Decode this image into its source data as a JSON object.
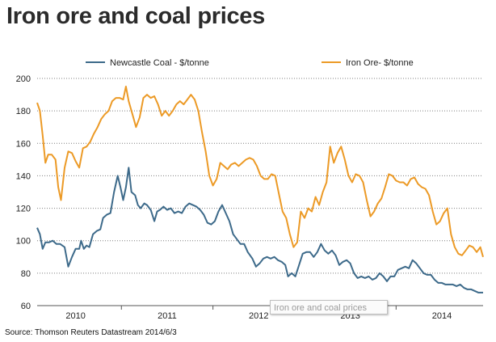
{
  "title": "Iron ore and coal prices",
  "source": "Source: Thomson Reuters Datastream 2014/6/3",
  "tooltip": "Iron ore and coal prices",
  "colors": {
    "coal": "#3d6a8a",
    "iron": "#ec9a26",
    "grid": "#7f7f7f"
  },
  "chart_data": {
    "type": "line",
    "title": "Iron ore and coal prices",
    "xlabel": "",
    "ylabel": "",
    "x_range": [
      2009.58,
      2014.45
    ],
    "ylim": [
      60,
      200
    ],
    "y_ticks": [
      60,
      80,
      100,
      120,
      140,
      160,
      180,
      200
    ],
    "x_tick_labels": [
      {
        "label": "2010",
        "x": 2010.0
      },
      {
        "label": "2011",
        "x": 2011.0
      },
      {
        "label": "2012",
        "x": 2012.0
      },
      {
        "label": "2013",
        "x": 2013.0
      },
      {
        "label": "2014",
        "x": 2014.0
      }
    ],
    "grid": "horizontal-dotted",
    "legend": "top",
    "series": [
      {
        "name": "Newcastle Coal - $/tonne",
        "color": "#3d6a8a",
        "points": [
          [
            2009.58,
            108
          ],
          [
            2009.61,
            104
          ],
          [
            2009.64,
            95
          ],
          [
            2009.67,
            99
          ],
          [
            2009.71,
            99
          ],
          [
            2009.75,
            100
          ],
          [
            2009.79,
            98
          ],
          [
            2009.83,
            98
          ],
          [
            2009.88,
            96
          ],
          [
            2009.92,
            84
          ],
          [
            2009.96,
            90
          ],
          [
            2010.0,
            95
          ],
          [
            2010.04,
            95
          ],
          [
            2010.06,
            100
          ],
          [
            2010.09,
            95
          ],
          [
            2010.12,
            97
          ],
          [
            2010.15,
            96
          ],
          [
            2010.19,
            104
          ],
          [
            2010.23,
            106
          ],
          [
            2010.27,
            107
          ],
          [
            2010.3,
            114
          ],
          [
            2010.34,
            116
          ],
          [
            2010.38,
            117
          ],
          [
            2010.42,
            130
          ],
          [
            2010.46,
            140
          ],
          [
            2010.49,
            133
          ],
          [
            2010.52,
            125
          ],
          [
            2010.55,
            133
          ],
          [
            2010.58,
            145
          ],
          [
            2010.61,
            130
          ],
          [
            2010.65,
            128
          ],
          [
            2010.68,
            122
          ],
          [
            2010.71,
            120
          ],
          [
            2010.75,
            123
          ],
          [
            2010.78,
            122
          ],
          [
            2010.82,
            119
          ],
          [
            2010.86,
            112
          ],
          [
            2010.89,
            118
          ],
          [
            2010.92,
            119
          ],
          [
            2010.96,
            121
          ],
          [
            2011.0,
            119
          ],
          [
            2011.04,
            120
          ],
          [
            2011.08,
            117
          ],
          [
            2011.12,
            118
          ],
          [
            2011.16,
            117
          ],
          [
            2011.2,
            121
          ],
          [
            2011.24,
            123
          ],
          [
            2011.28,
            122
          ],
          [
            2011.32,
            121
          ],
          [
            2011.36,
            119
          ],
          [
            2011.4,
            116
          ],
          [
            2011.44,
            111
          ],
          [
            2011.48,
            110
          ],
          [
            2011.52,
            112
          ],
          [
            2011.56,
            118
          ],
          [
            2011.6,
            122
          ],
          [
            2011.64,
            117
          ],
          [
            2011.68,
            112
          ],
          [
            2011.72,
            104
          ],
          [
            2011.76,
            101
          ],
          [
            2011.8,
            98
          ],
          [
            2011.84,
            98
          ],
          [
            2011.88,
            93
          ],
          [
            2011.93,
            89
          ],
          [
            2011.97,
            84
          ],
          [
            2012.01,
            86
          ],
          [
            2012.05,
            89
          ],
          [
            2012.09,
            90
          ],
          [
            2012.13,
            89
          ],
          [
            2012.17,
            90
          ],
          [
            2012.21,
            88
          ],
          [
            2012.25,
            87
          ],
          [
            2012.29,
            85
          ],
          [
            2012.32,
            78
          ],
          [
            2012.36,
            80
          ],
          [
            2012.4,
            78
          ],
          [
            2012.44,
            85
          ],
          [
            2012.48,
            92
          ],
          [
            2012.52,
            93
          ],
          [
            2012.56,
            93
          ],
          [
            2012.6,
            90
          ],
          [
            2012.64,
            93
          ],
          [
            2012.68,
            98
          ],
          [
            2012.72,
            94
          ],
          [
            2012.76,
            92
          ],
          [
            2012.8,
            94
          ],
          [
            2012.84,
            91
          ],
          [
            2012.88,
            85
          ],
          [
            2012.92,
            87
          ],
          [
            2012.96,
            88
          ],
          [
            2013.0,
            86
          ],
          [
            2013.04,
            80
          ],
          [
            2013.08,
            77
          ],
          [
            2013.12,
            78
          ],
          [
            2013.16,
            77
          ],
          [
            2013.2,
            78
          ],
          [
            2013.24,
            76
          ],
          [
            2013.28,
            77
          ],
          [
            2013.32,
            80
          ],
          [
            2013.36,
            78
          ],
          [
            2013.4,
            75
          ],
          [
            2013.44,
            78
          ],
          [
            2013.48,
            78
          ],
          [
            2013.52,
            82
          ],
          [
            2013.56,
            83
          ],
          [
            2013.6,
            84
          ],
          [
            2013.64,
            83
          ],
          [
            2013.68,
            88
          ],
          [
            2013.72,
            86
          ],
          [
            2013.76,
            83
          ],
          [
            2013.8,
            80
          ],
          [
            2013.84,
            79
          ],
          [
            2013.88,
            79
          ],
          [
            2013.92,
            76
          ],
          [
            2013.96,
            74
          ],
          [
            2014.0,
            74
          ],
          [
            2014.04,
            73
          ],
          [
            2014.08,
            73
          ],
          [
            2014.12,
            73
          ],
          [
            2014.16,
            72
          ],
          [
            2014.2,
            73
          ],
          [
            2014.24,
            71
          ],
          [
            2014.28,
            70
          ],
          [
            2014.32,
            70
          ],
          [
            2014.36,
            69
          ],
          [
            2014.4,
            68
          ],
          [
            2014.45,
            68
          ]
        ]
      },
      {
        "name": "Iron Ore- $/tonne",
        "color": "#ec9a26",
        "points": [
          [
            2009.58,
            185
          ],
          [
            2009.61,
            180
          ],
          [
            2009.64,
            165
          ],
          [
            2009.67,
            148
          ],
          [
            2009.7,
            153
          ],
          [
            2009.74,
            153
          ],
          [
            2009.78,
            150
          ],
          [
            2009.81,
            133
          ],
          [
            2009.84,
            125
          ],
          [
            2009.88,
            145
          ],
          [
            2009.92,
            155
          ],
          [
            2009.96,
            154
          ],
          [
            2010.0,
            149
          ],
          [
            2010.04,
            145
          ],
          [
            2010.08,
            157
          ],
          [
            2010.12,
            158
          ],
          [
            2010.16,
            161
          ],
          [
            2010.2,
            166
          ],
          [
            2010.24,
            170
          ],
          [
            2010.28,
            175
          ],
          [
            2010.32,
            178
          ],
          [
            2010.36,
            180
          ],
          [
            2010.4,
            186
          ],
          [
            2010.44,
            188
          ],
          [
            2010.48,
            188
          ],
          [
            2010.52,
            187
          ],
          [
            2010.55,
            195
          ],
          [
            2010.58,
            186
          ],
          [
            2010.62,
            178
          ],
          [
            2010.66,
            170
          ],
          [
            2010.7,
            176
          ],
          [
            2010.74,
            188
          ],
          [
            2010.78,
            190
          ],
          [
            2010.82,
            188
          ],
          [
            2010.86,
            189
          ],
          [
            2010.9,
            184
          ],
          [
            2010.94,
            177
          ],
          [
            2010.98,
            180
          ],
          [
            2011.02,
            177
          ],
          [
            2011.06,
            180
          ],
          [
            2011.1,
            184
          ],
          [
            2011.14,
            186
          ],
          [
            2011.18,
            184
          ],
          [
            2011.22,
            187
          ],
          [
            2011.26,
            190
          ],
          [
            2011.3,
            187
          ],
          [
            2011.34,
            180
          ],
          [
            2011.38,
            167
          ],
          [
            2011.42,
            155
          ],
          [
            2011.46,
            140
          ],
          [
            2011.5,
            134
          ],
          [
            2011.54,
            138
          ],
          [
            2011.58,
            148
          ],
          [
            2011.62,
            146
          ],
          [
            2011.66,
            144
          ],
          [
            2011.7,
            147
          ],
          [
            2011.74,
            148
          ],
          [
            2011.78,
            146
          ],
          [
            2011.82,
            148
          ],
          [
            2011.86,
            150
          ],
          [
            2011.9,
            151
          ],
          [
            2011.94,
            150
          ],
          [
            2011.98,
            146
          ],
          [
            2012.02,
            140
          ],
          [
            2012.06,
            138
          ],
          [
            2012.1,
            138
          ],
          [
            2012.14,
            141
          ],
          [
            2012.18,
            140
          ],
          [
            2012.22,
            129
          ],
          [
            2012.26,
            118
          ],
          [
            2012.3,
            114
          ],
          [
            2012.34,
            104
          ],
          [
            2012.38,
            96
          ],
          [
            2012.42,
            99
          ],
          [
            2012.46,
            118
          ],
          [
            2012.5,
            114
          ],
          [
            2012.54,
            120
          ],
          [
            2012.58,
            118
          ],
          [
            2012.62,
            127
          ],
          [
            2012.66,
            122
          ],
          [
            2012.7,
            130
          ],
          [
            2012.74,
            136
          ],
          [
            2012.78,
            158
          ],
          [
            2012.82,
            148
          ],
          [
            2012.86,
            154
          ],
          [
            2012.9,
            158
          ],
          [
            2012.94,
            150
          ],
          [
            2012.98,
            140
          ],
          [
            2013.02,
            136
          ],
          [
            2013.06,
            141
          ],
          [
            2013.1,
            140
          ],
          [
            2013.14,
            136
          ],
          [
            2013.18,
            125
          ],
          [
            2013.22,
            115
          ],
          [
            2013.26,
            118
          ],
          [
            2013.3,
            123
          ],
          [
            2013.34,
            126
          ],
          [
            2013.38,
            133
          ],
          [
            2013.42,
            141
          ],
          [
            2013.46,
            140
          ],
          [
            2013.5,
            137
          ],
          [
            2013.54,
            136
          ],
          [
            2013.58,
            136
          ],
          [
            2013.62,
            134
          ],
          [
            2013.66,
            138
          ],
          [
            2013.7,
            139
          ],
          [
            2013.74,
            135
          ],
          [
            2013.78,
            133
          ],
          [
            2013.82,
            132
          ],
          [
            2013.86,
            128
          ],
          [
            2013.9,
            118
          ],
          [
            2013.94,
            110
          ],
          [
            2013.98,
            112
          ],
          [
            2014.02,
            117
          ],
          [
            2014.06,
            120
          ],
          [
            2014.1,
            104
          ],
          [
            2014.14,
            96
          ],
          [
            2014.18,
            92
          ],
          [
            2014.22,
            91
          ],
          [
            2014.26,
            94
          ],
          [
            2014.3,
            97
          ],
          [
            2014.34,
            96
          ],
          [
            2014.38,
            93
          ],
          [
            2014.42,
            96
          ],
          [
            2014.45,
            90
          ]
        ]
      }
    ]
  }
}
